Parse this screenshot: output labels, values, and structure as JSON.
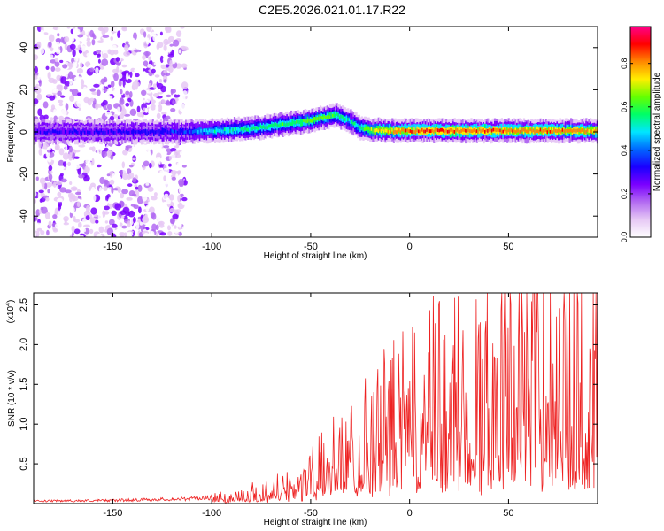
{
  "title": "C2E5.2026.021.01.17.R22",
  "chart_data": [
    {
      "type": "heatmap",
      "xlabel": "Height of straight line (km)",
      "ylabel": "Frequency (Hz)",
      "xlim": [
        -190,
        95
      ],
      "ylim": [
        -50,
        50
      ],
      "xticks": [
        -150,
        -100,
        -50,
        0,
        50
      ],
      "xtick_labels": [
        "-150",
        "-100",
        "-50",
        "0",
        "50"
      ],
      "yticks": [
        -40,
        -20,
        0,
        20,
        40
      ],
      "ytick_labels": [
        "-40",
        "-20",
        "0",
        "20",
        "40"
      ],
      "colorbar": {
        "label": "Normalized spectral amplitude",
        "range": [
          0.0,
          0.97
        ],
        "ticks": [
          0.0,
          0.2,
          0.4,
          0.6,
          0.8
        ],
        "tick_labels": [
          "0.0",
          "0.2",
          "0.4",
          "0.6",
          "0.8"
        ],
        "colors": [
          "#ffffff",
          "#e6c8f5",
          "#b36bf2",
          "#7a00ff",
          "#1a00ff",
          "#0066ff",
          "#00e6ff",
          "#00ff66",
          "#66ff00",
          "#ffee00",
          "#ff8800",
          "#ff0000",
          "#ff0088"
        ]
      },
      "noise_region_x": [
        -190,
        -113
      ],
      "ridge": {
        "x": [
          -190,
          -150,
          -113,
          -100,
          -80,
          -60,
          -50,
          -42,
          -37,
          -30,
          -25,
          -20,
          -10,
          0,
          20,
          50,
          80,
          95
        ],
        "y": [
          0,
          0,
          0,
          0.5,
          1.5,
          4,
          5.5,
          7,
          8,
          5,
          2,
          1,
          0.5,
          0.5,
          0.5,
          0.5,
          0.5,
          0.5
        ],
        "amplitude": [
          0.35,
          0.35,
          0.4,
          0.55,
          0.6,
          0.65,
          0.7,
          0.7,
          0.65,
          0.55,
          0.6,
          0.75,
          0.85,
          0.9,
          0.92,
          0.9,
          0.88,
          0.85
        ]
      }
    },
    {
      "type": "line",
      "xlabel": "Height of straight line (km)",
      "ylabel": "SNR (10 * v/v)",
      "multiplier_label": "(x10",
      "multiplier_exponent": "4",
      "multiplier_close": ")",
      "xlim": [
        -190,
        95
      ],
      "ylim": [
        0,
        2.65
      ],
      "xticks": [
        -150,
        -100,
        -50,
        0,
        50
      ],
      "xtick_labels": [
        "-150",
        "-100",
        "-50",
        "0",
        "50"
      ],
      "yticks": [
        0.5,
        1.0,
        1.5,
        2.0,
        2.5
      ],
      "ytick_labels": [
        "0.5",
        "1.0",
        "1.5",
        "2.0",
        "2.5"
      ],
      "series": [
        {
          "name": "SNR",
          "color": "#ee2222",
          "envelope_x": [
            -190,
            -150,
            -110,
            -90,
            -70,
            -50,
            -40,
            -30,
            -20,
            -10,
            0,
            10,
            20,
            30,
            40,
            50,
            60,
            70,
            80,
            95
          ],
          "envelope_y": [
            0.03,
            0.04,
            0.06,
            0.1,
            0.2,
            0.4,
            0.6,
            0.8,
            1.0,
            1.15,
            1.3,
            1.45,
            1.55,
            1.65,
            1.8,
            1.95,
            2.1,
            2.15,
            2.0,
            1.9
          ]
        }
      ]
    }
  ]
}
